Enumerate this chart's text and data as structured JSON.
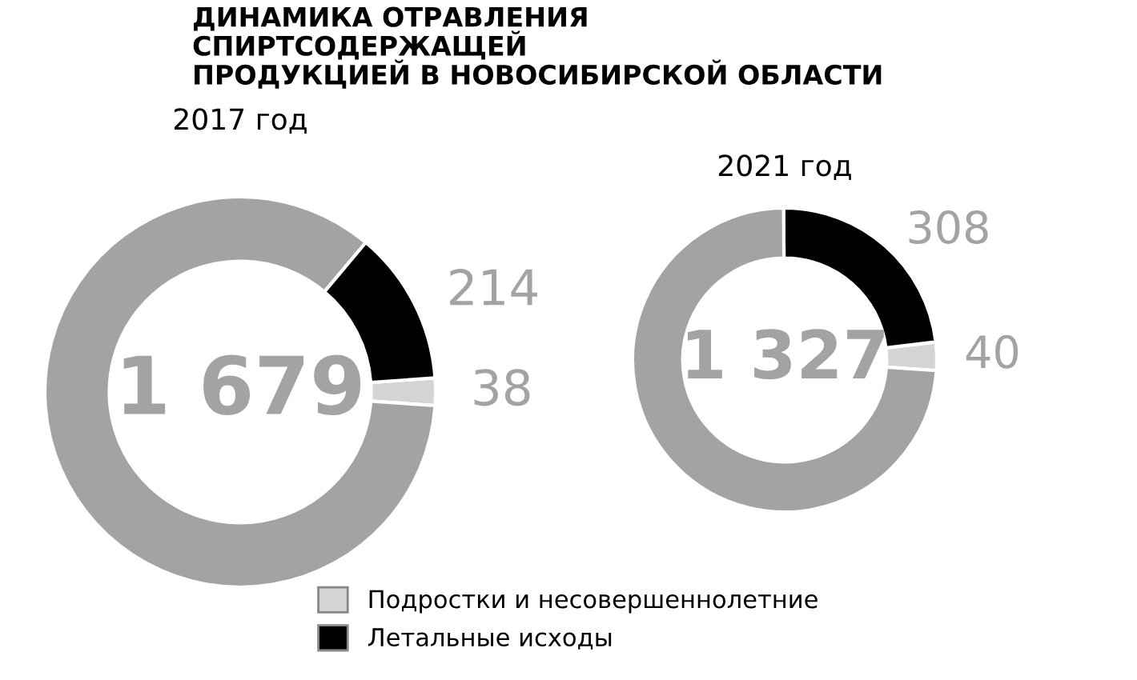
{
  "chart_data": [
    {
      "type": "donut",
      "title": "ДИНАМИКА ОТРАВЛЕНИЯ\nСПИРТСОДЕРЖАЩЕЙ\nПРОДУКЦИЕЙ В НОВОСИБИРСКОЙ ОБЛАСТИ",
      "subtitle": "2017 год",
      "categories": [
        "Подростки и несовершеннолетние",
        "Летальные исходы",
        null
      ],
      "values": [
        38,
        214,
        1427
      ],
      "value_labels": [
        "38",
        "214",
        null
      ],
      "colors": [
        "#d4d4d4",
        "#000000",
        "#a3a3a3"
      ],
      "annotations": [
        "1 679"
      ],
      "legend": "bottom"
    },
    {
      "type": "donut",
      "title": "2021 год",
      "categories": [
        null,
        null,
        null
      ],
      "values": [
        40,
        308,
        979
      ],
      "value_labels": [
        "40",
        "308",
        null
      ],
      "colors": [
        "#d4d4d4",
        "#000000",
        "#a3a3a3"
      ],
      "annotations": [
        "1 327"
      ]
    }
  ]
}
